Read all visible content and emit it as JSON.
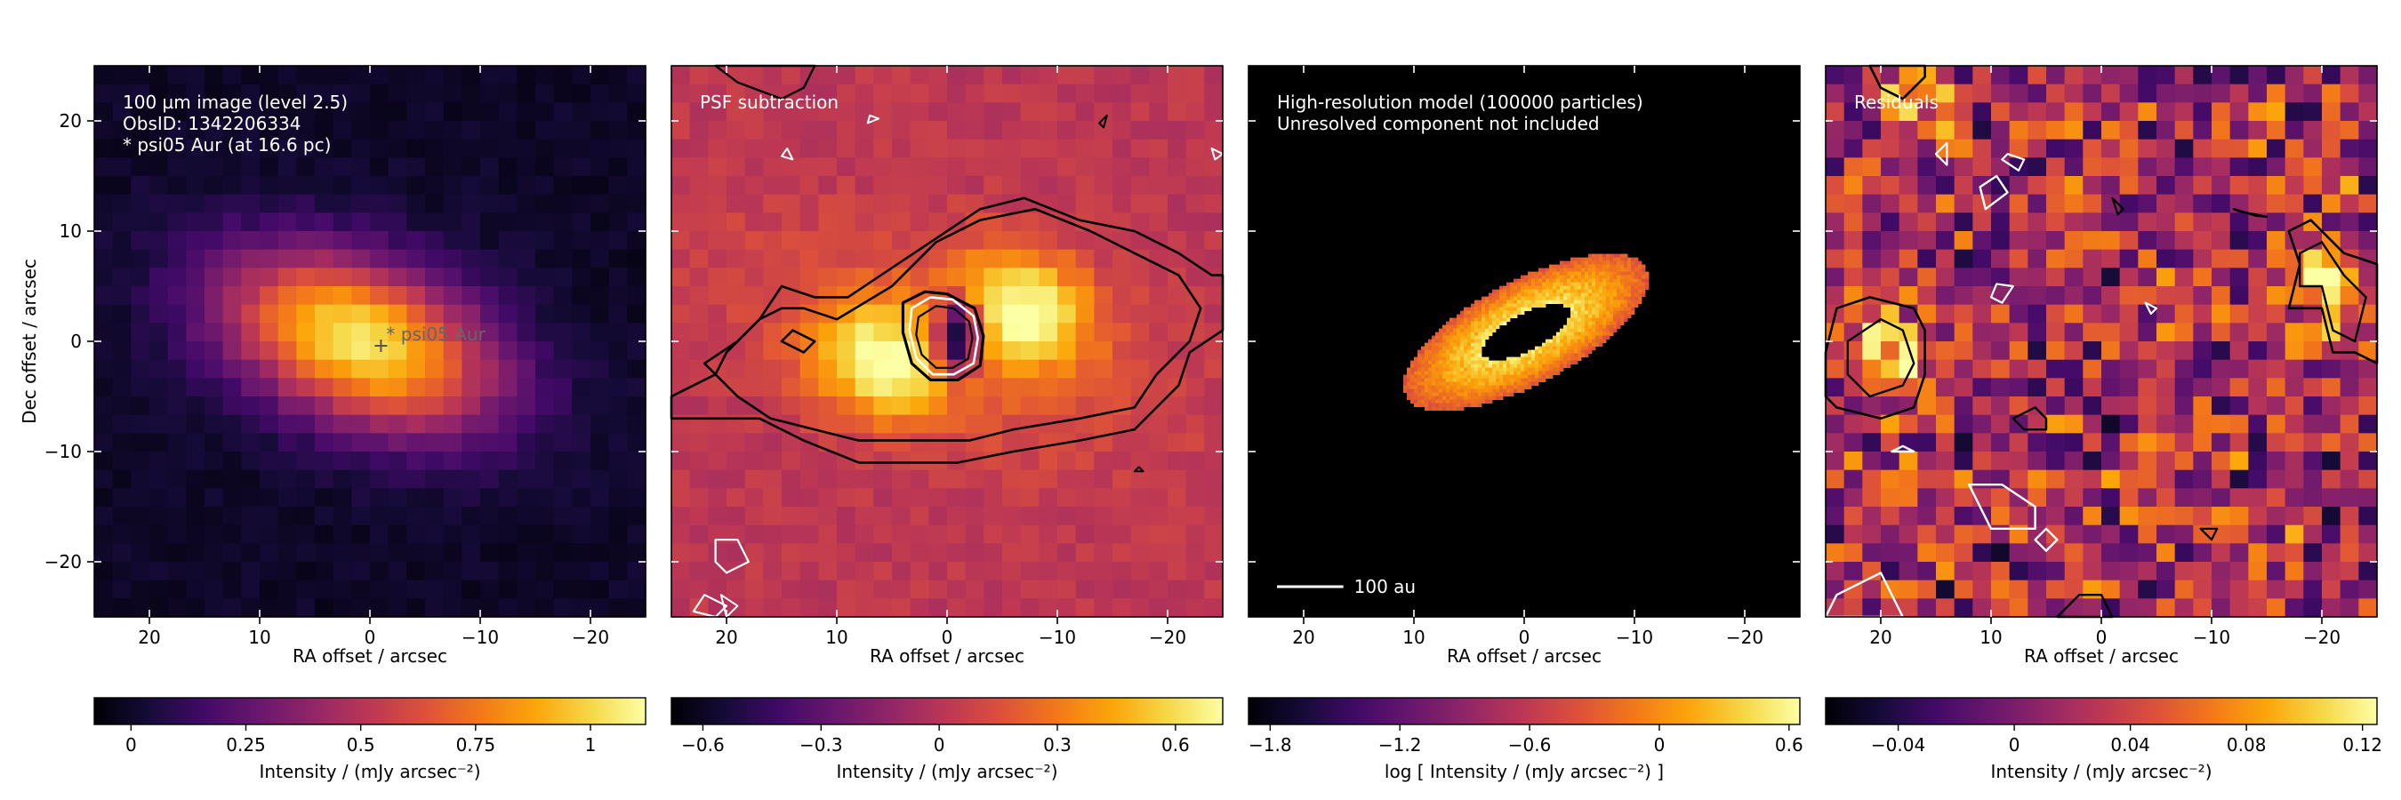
{
  "chart_data": [
    {
      "type": "heatmap",
      "panel": "observation",
      "xlabel": "RA offset / arcsec",
      "ylabel": "Dec offset / arcsec",
      "xlim": [
        25,
        -25
      ],
      "ylim": [
        -25,
        25
      ],
      "xticks": [
        20,
        10,
        0,
        -10,
        -20
      ],
      "xtick_labels": [
        "20",
        "10",
        "0",
        "−10",
        "−20"
      ],
      "yticks": [
        20,
        10,
        0,
        -10,
        -20
      ],
      "ytick_labels": [
        "20",
        "10",
        "0",
        "−10",
        "−20"
      ],
      "annotations": [
        "100 µm image (level 2.5)",
        "ObsID: 1342206334",
        "* psi05 Aur (at 16.6 pc)"
      ],
      "star_marker": {
        "symbol": "+",
        "label": "* psi05 Aur",
        "x": -1,
        "y": 0
      },
      "source": {
        "x": 1,
        "y": 0,
        "sigma_major": 9,
        "sigma_minor": 5,
        "pa_deg": 20
      },
      "colormap": "inferno",
      "colorbar": {
        "min": -0.08,
        "max": 1.12,
        "ticks": [
          0,
          0.25,
          0.5,
          0.75,
          1
        ],
        "tick_labels": [
          "0",
          "0.25",
          "0.5",
          "0.75",
          "1"
        ],
        "label": "Intensity / (mJy arcsec⁻²)"
      }
    },
    {
      "type": "heatmap",
      "panel": "psf_subtraction",
      "xlabel": "RA offset / arcsec",
      "xlim": [
        25,
        -25
      ],
      "ylim": [
        -25,
        25
      ],
      "xticks": [
        20,
        10,
        0,
        -10,
        -20
      ],
      "xtick_labels": [
        "20",
        "10",
        "0",
        "−10",
        "−20"
      ],
      "annotations": [
        "PSF subtraction"
      ],
      "contours": true,
      "lobes": [
        {
          "x": 6,
          "y": -2
        },
        {
          "x": -7,
          "y": 3
        }
      ],
      "central_hole": {
        "x": -1,
        "y": 0.5
      },
      "colormap": "inferno",
      "colorbar": {
        "min": -0.68,
        "max": 0.72,
        "ticks": [
          -0.6,
          -0.3,
          0,
          0.3,
          0.6
        ],
        "tick_labels": [
          "−0.6",
          "−0.3",
          "0",
          "0.3",
          "0.6"
        ],
        "label": "Intensity / (mJy arcsec⁻²)"
      }
    },
    {
      "type": "heatmap",
      "panel": "model",
      "xlabel": "RA offset / arcsec",
      "xlim": [
        25,
        -25
      ],
      "ylim": [
        -25,
        25
      ],
      "xticks": [
        20,
        10,
        0,
        -10,
        -20
      ],
      "xtick_labels": [
        "20",
        "10",
        "0",
        "−10",
        "−20"
      ],
      "annotations": [
        "High-resolution model (100000 particles)",
        "Unresolved component not included"
      ],
      "scale_bar": {
        "label": "100 au",
        "length_arcsec": 6.02
      },
      "colormap": "inferno",
      "colorbar": {
        "min": -1.9,
        "max": 0.65,
        "ticks": [
          -1.8,
          -1.2,
          -0.6,
          0,
          0.6
        ],
        "tick_labels": [
          "−1.8",
          "−1.2",
          "−0.6",
          "0",
          "0.6"
        ],
        "label": "log [ Intensity / (mJy arcsec⁻²) ]"
      }
    },
    {
      "type": "heatmap",
      "panel": "residuals",
      "xlabel": "RA offset / arcsec",
      "xlim": [
        25,
        -25
      ],
      "ylim": [
        -25,
        25
      ],
      "xticks": [
        20,
        10,
        0,
        -10,
        -20
      ],
      "xtick_labels": [
        "20",
        "10",
        "0",
        "−10",
        "−20"
      ],
      "annotations": [
        "Residuals"
      ],
      "contours": true,
      "colormap": "inferno",
      "colorbar": {
        "min": -0.065,
        "max": 0.125,
        "ticks": [
          -0.04,
          0,
          0.04,
          0.08,
          0.12
        ],
        "tick_labels": [
          "−0.04",
          "0",
          "0.04",
          "0.08",
          "0.12"
        ],
        "label": "Intensity / (mJy arcsec⁻²)"
      }
    }
  ]
}
